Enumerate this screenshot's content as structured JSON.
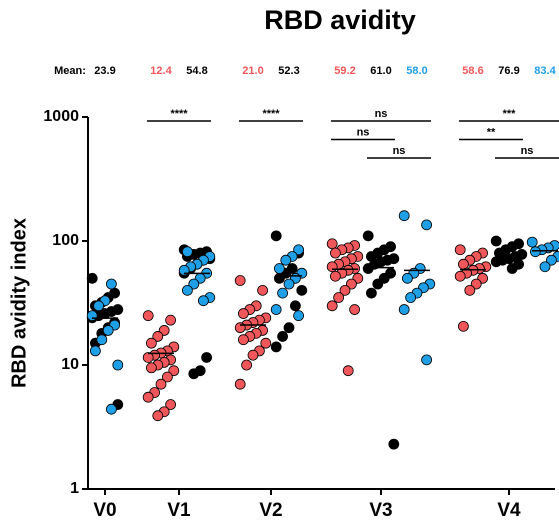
{
  "chart_data": {
    "type": "dot_plot",
    "title": "RBD avidity",
    "mean_caption": "Mean:",
    "y_label": "RBD avidity index",
    "y_log": true,
    "ylim": [
      1,
      1000
    ],
    "yticks": [
      1,
      10,
      100,
      1000
    ],
    "categories": [
      "V0",
      "V1",
      "V2",
      "V3",
      "V4"
    ],
    "groups": [
      [
        {
          "mean": 23.9,
          "mean_label": "23.9",
          "mean_color": "#000000",
          "subsets": [
            {
              "color": "#000000",
              "values": [
                50,
                38,
                35,
                32,
                30,
                28,
                27,
                26,
                25,
                24,
                22,
                20,
                18,
                15,
                4.8
              ]
            },
            {
              "color": "#1f9fe6",
              "values": [
                45,
                33,
                30,
                25,
                21,
                19,
                16,
                13,
                10,
                4.4
              ]
            }
          ]
        }
      ],
      [
        {
          "mean": 12.4,
          "mean_label": "12.4",
          "mean_color": "#f0575a",
          "subsets": [
            {
              "color": "#f0575a",
              "values": [
                25,
                23,
                19,
                17,
                15,
                14,
                13,
                12.5,
                12,
                11.5,
                11,
                10.5,
                10,
                9.5,
                9,
                8,
                7,
                6,
                5.5,
                4.8,
                4.2,
                3.9
              ]
            }
          ]
        },
        {
          "mean": 54.8,
          "mean_label": "54.8",
          "mean_color": "#000000",
          "subsets": [
            {
              "color": "#000000",
              "values": [
                85,
                82,
                80,
                78,
                75,
                72,
                70,
                65,
                60,
                55,
                11.5,
                9,
                8.5
              ]
            },
            {
              "color": "#1f9fe6",
              "values": [
                82,
                75,
                70,
                65,
                62,
                58,
                55,
                50,
                45,
                40,
                35,
                33
              ]
            }
          ]
        }
      ],
      [
        {
          "mean": 21.0,
          "mean_label": "21.0",
          "mean_color": "#f0575a",
          "subsets": [
            {
              "color": "#f0575a",
              "values": [
                48,
                40,
                30,
                28,
                26,
                24,
                23,
                22,
                21,
                20,
                19,
                18,
                17,
                16,
                15,
                13,
                12,
                10,
                7
              ]
            }
          ]
        },
        {
          "mean": 52.3,
          "mean_label": "52.3",
          "mean_color": "#000000",
          "subsets": [
            {
              "color": "#000000",
              "values": [
                110,
                80,
                60,
                55,
                50,
                40,
                30,
                20,
                17,
                14
              ]
            },
            {
              "color": "#1f9fe6",
              "values": [
                85,
                75,
                70,
                60,
                55,
                50,
                45,
                38,
                28,
                25
              ]
            }
          ]
        }
      ],
      [
        {
          "mean": 59.2,
          "mean_label": "59.2",
          "mean_color": "#f0575a",
          "subsets": [
            {
              "color": "#f0575a",
              "values": [
                95,
                92,
                88,
                85,
                80,
                75,
                72,
                68,
                65,
                62,
                60,
                58,
                55,
                52,
                50,
                45,
                40,
                35,
                30,
                28,
                9
              ]
            }
          ]
        },
        {
          "mean": 61.0,
          "mean_label": "61.0",
          "mean_color": "#000000",
          "subsets": [
            {
              "color": "#000000",
              "values": [
                110,
                90,
                85,
                80,
                75,
                72,
                70,
                68,
                65,
                60,
                55,
                50,
                45,
                38,
                2.3
              ]
            }
          ]
        },
        {
          "mean": 58.0,
          "mean_label": "58.0",
          "mean_color": "#1f9fe6",
          "subsets": [
            {
              "color": "#1f9fe6",
              "values": [
                160,
                135,
                60,
                55,
                50,
                45,
                42,
                38,
                35,
                28,
                11
              ]
            }
          ]
        }
      ],
      [
        {
          "mean": 58.6,
          "mean_label": "58.6",
          "mean_color": "#f0575a",
          "subsets": [
            {
              "color": "#f0575a",
              "values": [
                85,
                80,
                75,
                70,
                65,
                62,
                60,
                58,
                55,
                52,
                50,
                45,
                40,
                20.5
              ]
            }
          ]
        },
        {
          "mean": 76.9,
          "mean_label": "76.9",
          "mean_color": "#000000",
          "subsets": [
            {
              "color": "#000000",
              "values": [
                100,
                95,
                90,
                85,
                80,
                78,
                75,
                72,
                70,
                68,
                65,
                60
              ]
            }
          ]
        },
        {
          "mean": 83.4,
          "mean_label": "83.4",
          "mean_color": "#1f9fe6",
          "subsets": [
            {
              "color": "#1f9fe6",
              "values": [
                98,
                92,
                88,
                85,
                82,
                75,
                70,
                62
              ]
            }
          ]
        }
      ]
    ],
    "comparisons": [
      {
        "category": 1,
        "between": [
          0,
          1
        ],
        "label": "****"
      },
      {
        "category": 2,
        "between": [
          0,
          1
        ],
        "label": "****"
      },
      {
        "category": 3,
        "between": [
          0,
          2
        ],
        "label": "ns"
      },
      {
        "category": 3,
        "between": [
          0,
          1
        ],
        "label": "ns"
      },
      {
        "category": 3,
        "between": [
          1,
          2
        ],
        "label": "ns"
      },
      {
        "category": 4,
        "between": [
          0,
          2
        ],
        "label": "***"
      },
      {
        "category": 4,
        "between": [
          0,
          1
        ],
        "label": "**"
      },
      {
        "category": 4,
        "between": [
          1,
          2
        ],
        "label": "ns"
      }
    ]
  }
}
